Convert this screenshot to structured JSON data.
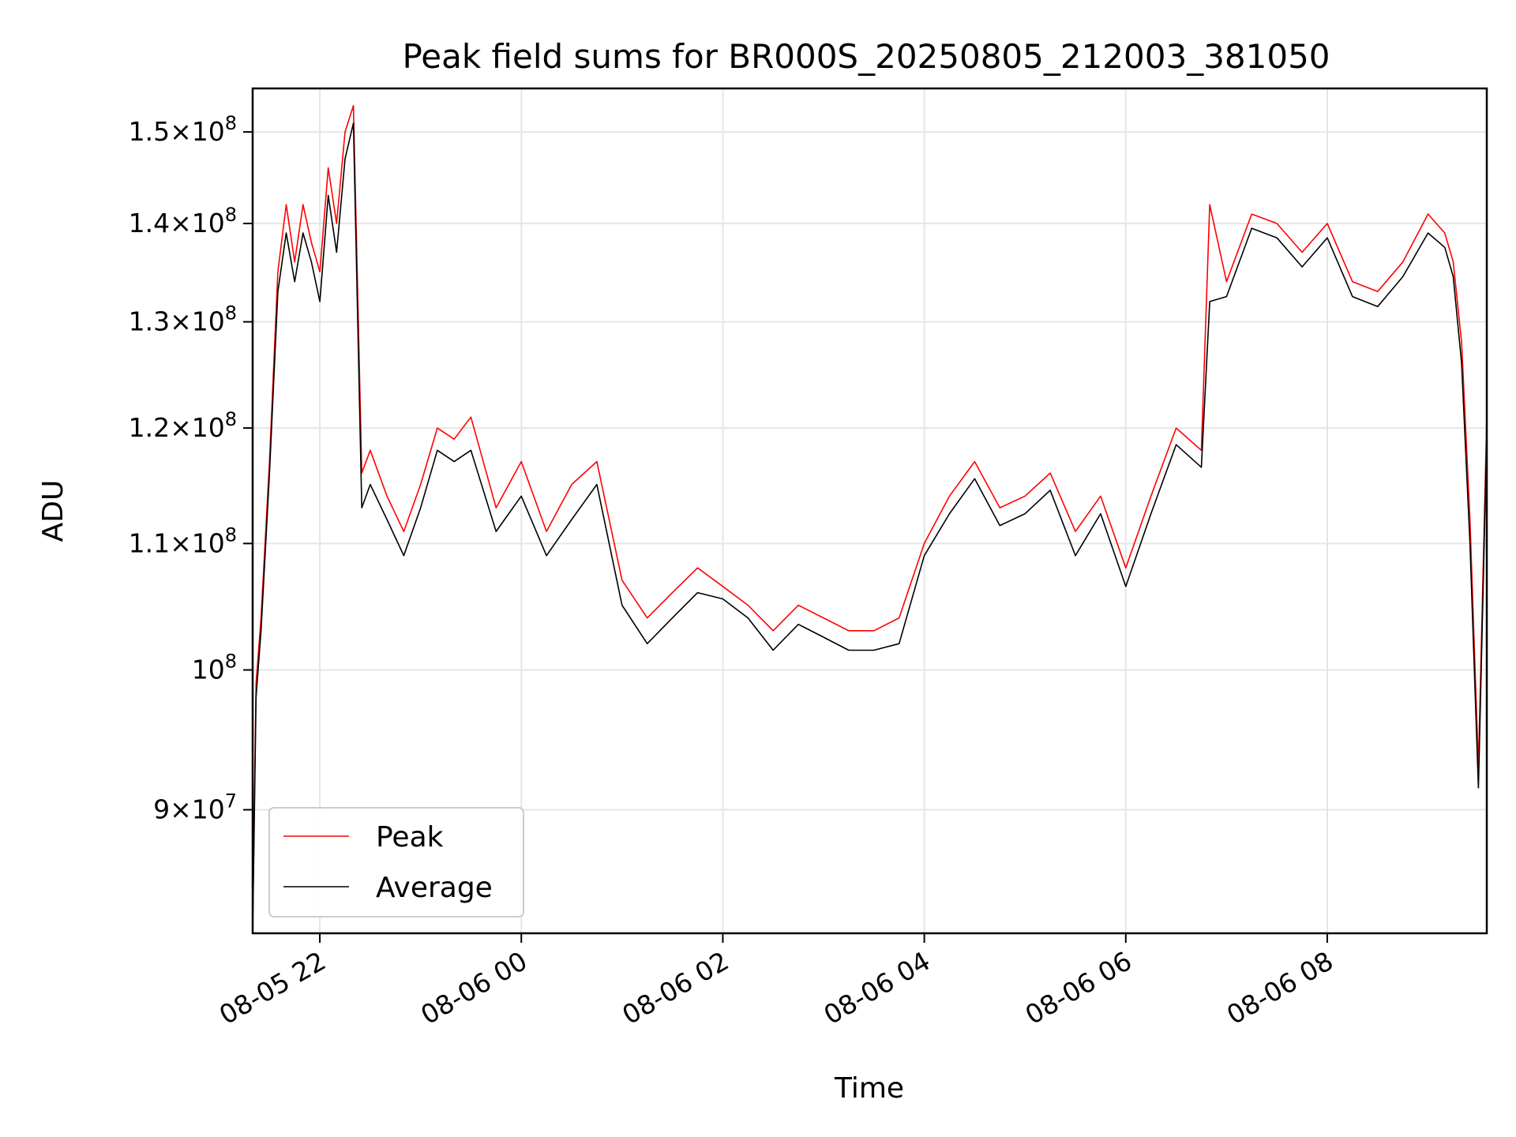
{
  "chart_data": {
    "type": "line",
    "title": "Peak field sums for BR000S_20250805_212003_381050",
    "xlabel": "Time",
    "ylabel": "ADU",
    "yscale": "log",
    "xlim": [
      "2025-08-05 21:20",
      "2025-08-06 09:35"
    ],
    "ylim": [
      82000000,
      155000000
    ],
    "grid": true,
    "legend_position": "lower-left",
    "x_ticks": [
      {
        "value": "2025-08-05 22:00",
        "label": "08-05 22"
      },
      {
        "value": "2025-08-06 00:00",
        "label": "08-06 00"
      },
      {
        "value": "2025-08-06 02:00",
        "label": "08-06 02"
      },
      {
        "value": "2025-08-06 04:00",
        "label": "08-06 04"
      },
      {
        "value": "2025-08-06 06:00",
        "label": "08-06 06"
      },
      {
        "value": "2025-08-06 08:00",
        "label": "08-06 08"
      }
    ],
    "y_ticks": [
      {
        "value": 90000000,
        "label": "9×10",
        "exp": "7"
      },
      {
        "value": 100000000,
        "label": "10",
        "exp": "8"
      },
      {
        "value": 110000000,
        "label": "1.1×10",
        "exp": "8"
      },
      {
        "value": 120000000,
        "label": "1.2×10",
        "exp": "8"
      },
      {
        "value": 130000000,
        "label": "1.3×10",
        "exp": "8"
      },
      {
        "value": 140000000,
        "label": "1.4×10",
        "exp": "8"
      },
      {
        "value": 150000000,
        "label": "1.5×10",
        "exp": "8"
      }
    ],
    "series": [
      {
        "name": "Peak",
        "color": "#ff0000"
      },
      {
        "name": "Average",
        "color": "#000000"
      }
    ],
    "x": [
      "2025-08-05 21:20",
      "2025-08-05 21:22",
      "2025-08-05 21:25",
      "2025-08-05 21:30",
      "2025-08-05 21:35",
      "2025-08-05 21:40",
      "2025-08-05 21:45",
      "2025-08-05 21:50",
      "2025-08-05 21:55",
      "2025-08-05 22:00",
      "2025-08-05 22:05",
      "2025-08-05 22:10",
      "2025-08-05 22:15",
      "2025-08-05 22:20",
      "2025-08-05 22:25",
      "2025-08-05 22:30",
      "2025-08-05 22:40",
      "2025-08-05 22:50",
      "2025-08-05 23:00",
      "2025-08-05 23:10",
      "2025-08-05 23:20",
      "2025-08-05 23:30",
      "2025-08-05 23:45",
      "2025-08-06 00:00",
      "2025-08-06 00:15",
      "2025-08-06 00:30",
      "2025-08-06 00:45",
      "2025-08-06 01:00",
      "2025-08-06 01:15",
      "2025-08-06 01:30",
      "2025-08-06 01:45",
      "2025-08-06 02:00",
      "2025-08-06 02:15",
      "2025-08-06 02:30",
      "2025-08-06 02:45",
      "2025-08-06 03:00",
      "2025-08-06 03:15",
      "2025-08-06 03:30",
      "2025-08-06 03:45",
      "2025-08-06 04:00",
      "2025-08-06 04:15",
      "2025-08-06 04:30",
      "2025-08-06 04:45",
      "2025-08-06 05:00",
      "2025-08-06 05:15",
      "2025-08-06 05:30",
      "2025-08-06 05:45",
      "2025-08-06 06:00",
      "2025-08-06 06:15",
      "2025-08-06 06:30",
      "2025-08-06 06:45",
      "2025-08-06 06:50",
      "2025-08-06 07:00",
      "2025-08-06 07:15",
      "2025-08-06 07:30",
      "2025-08-06 07:45",
      "2025-08-06 08:00",
      "2025-08-06 08:15",
      "2025-08-06 08:30",
      "2025-08-06 08:45",
      "2025-08-06 09:00",
      "2025-08-06 09:10",
      "2025-08-06 09:15",
      "2025-08-06 09:20",
      "2025-08-06 09:25",
      "2025-08-06 09:30",
      "2025-08-06 09:35"
    ],
    "peak": [
      82500000,
      99000000,
      104000000,
      117000000,
      135000000,
      142000000,
      136000000,
      142000000,
      138000000,
      135000000,
      146000000,
      140000000,
      150000000,
      153000000,
      116000000,
      118000000,
      114000000,
      111000000,
      115000000,
      120000000,
      119000000,
      121000000,
      113000000,
      117000000,
      111000000,
      115000000,
      117000000,
      107000000,
      104000000,
      106000000,
      108000000,
      106500000,
      105000000,
      103000000,
      105000000,
      104000000,
      103000000,
      103000000,
      104000000,
      110000000,
      114000000,
      117000000,
      113000000,
      114000000,
      116000000,
      111000000,
      114000000,
      108000000,
      114000000,
      120000000,
      118000000,
      142000000,
      134000000,
      141000000,
      140000000,
      137000000,
      140000000,
      134000000,
      133000000,
      136000000,
      141000000,
      139000000,
      136000000,
      128000000,
      112000000,
      93000000,
      121000000
    ],
    "average": [
      82000000,
      98000000,
      103000000,
      116000000,
      133000000,
      139000000,
      134000000,
      139000000,
      136000000,
      132000000,
      143000000,
      137000000,
      147000000,
      151000000,
      113000000,
      115000000,
      112000000,
      109000000,
      113000000,
      118000000,
      117000000,
      118000000,
      111000000,
      114000000,
      109000000,
      112000000,
      115000000,
      105000000,
      102000000,
      104000000,
      106000000,
      105500000,
      104000000,
      101500000,
      103500000,
      102500000,
      101500000,
      101500000,
      102000000,
      109000000,
      112500000,
      115500000,
      111500000,
      112500000,
      114500000,
      109000000,
      112500000,
      106500000,
      112500000,
      118500000,
      116500000,
      132000000,
      132500000,
      139500000,
      138500000,
      135500000,
      138500000,
      132500000,
      131500000,
      134500000,
      139000000,
      137500000,
      134500000,
      126000000,
      110000000,
      91500000,
      119500000
    ]
  }
}
